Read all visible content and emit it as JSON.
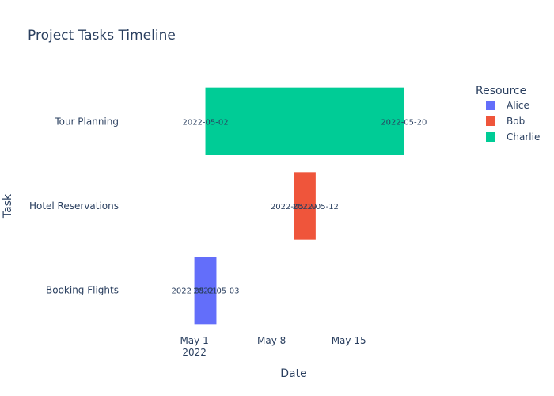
{
  "chart_data": {
    "type": "timeline",
    "title": "Project Tasks Timeline",
    "xlabel": "Date",
    "ylabel": "Task",
    "x_ticks": [
      {
        "date": "2022-05-01",
        "label": "May 1",
        "sublabel": "2022"
      },
      {
        "date": "2022-05-08",
        "label": "May 8",
        "sublabel": ""
      },
      {
        "date": "2022-05-15",
        "label": "May 15",
        "sublabel": ""
      }
    ],
    "x_range": [
      "2022-04-25",
      "2022-05-25"
    ],
    "categories": [
      "Tour Planning",
      "Hotel Reservations",
      "Booking Flights"
    ],
    "legend_title": "Resource",
    "legend_position": "right",
    "series": [
      {
        "name": "Alice",
        "color": "#636efa",
        "tasks": [
          {
            "task": "Booking Flights",
            "start": "2022-05-01",
            "end": "2022-05-03",
            "start_label": "2022-05-01",
            "end_label": "2022-05-03"
          }
        ]
      },
      {
        "name": "Bob",
        "color": "#ef553b",
        "tasks": [
          {
            "task": "Hotel Reservations",
            "start": "2022-05-10",
            "end": "2022-05-12",
            "start_label": "2022-05-10",
            "end_label": "2022-05-12"
          }
        ]
      },
      {
        "name": "Charlie",
        "color": "#00cc96",
        "tasks": [
          {
            "task": "Tour Planning",
            "start": "2022-05-02",
            "end": "2022-05-20",
            "start_label": "2022-05-02",
            "end_label": "2022-05-20"
          }
        ]
      }
    ]
  }
}
